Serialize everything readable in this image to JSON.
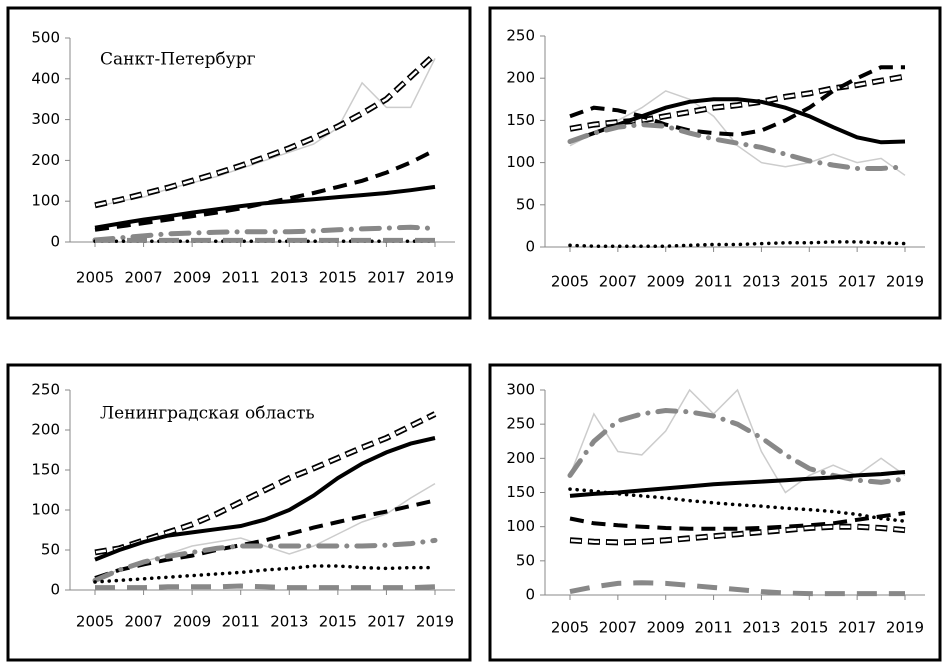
{
  "chart_data": [
    {
      "type": "line",
      "title": "Санкт-Петербург",
      "x": [
        2005,
        2006,
        2007,
        2008,
        2009,
        2010,
        2011,
        2012,
        2013,
        2014,
        2015,
        2016,
        2017,
        2018,
        2019
      ],
      "xlim": [
        2005,
        2019
      ],
      "xticks": [
        2005,
        2007,
        2009,
        2011,
        2013,
        2015,
        2017,
        2019
      ],
      "ylim": [
        0,
        500
      ],
      "yticks": [
        0,
        100,
        200,
        300,
        400,
        500
      ],
      "series": [
        {
          "color": "#cccccc",
          "style": "thin",
          "values": [
            85,
            100,
            110,
            130,
            145,
            160,
            180,
            200,
            220,
            240,
            280,
            390,
            330,
            330,
            450
          ]
        },
        {
          "color": "#000000",
          "style": "hollow",
          "values": [
            90,
            103,
            118,
            133,
            150,
            168,
            187,
            208,
            230,
            255,
            283,
            315,
            350,
            405,
            460
          ]
        },
        {
          "color": "#000000",
          "style": "dash",
          "values": [
            30,
            38,
            46,
            55,
            63,
            72,
            82,
            95,
            107,
            120,
            135,
            150,
            170,
            195,
            225
          ]
        },
        {
          "color": "#000000",
          "style": "solid",
          "values": [
            35,
            45,
            55,
            63,
            72,
            80,
            88,
            95,
            100,
            105,
            110,
            115,
            120,
            127,
            135
          ]
        },
        {
          "color": "#888888",
          "style": "dashdot",
          "values": [
            5,
            10,
            15,
            20,
            22,
            24,
            25,
            25,
            25,
            27,
            30,
            32,
            34,
            36,
            33
          ]
        },
        {
          "color": "#000000",
          "style": "dot",
          "values": [
            2,
            2,
            2,
            2,
            2,
            2,
            2,
            2,
            2,
            2,
            2,
            2,
            2,
            2,
            2
          ]
        },
        {
          "color": "#888888",
          "style": "longdash",
          "values": [
            4,
            4,
            4,
            4,
            4,
            4,
            4,
            4,
            4,
            4,
            4,
            4,
            4,
            4,
            4
          ]
        }
      ]
    },
    {
      "type": "line",
      "x": [
        2005,
        2006,
        2007,
        2008,
        2009,
        2010,
        2011,
        2012,
        2013,
        2014,
        2015,
        2016,
        2017,
        2018,
        2019
      ],
      "xlim": [
        2005,
        2019
      ],
      "xticks": [
        2005,
        2007,
        2009,
        2011,
        2013,
        2015,
        2017,
        2019
      ],
      "ylim": [
        0,
        250
      ],
      "yticks": [
        0,
        50,
        100,
        150,
        200,
        250
      ],
      "series": [
        {
          "color": "#cccccc",
          "style": "thin",
          "values": [
            120,
            135,
            150,
            165,
            185,
            175,
            155,
            120,
            100,
            95,
            100,
            110,
            100,
            105,
            85
          ]
        },
        {
          "color": "#000000",
          "style": "hollow",
          "values": [
            140,
            145,
            148,
            150,
            155,
            160,
            165,
            168,
            172,
            178,
            182,
            188,
            192,
            197,
            202
          ]
        },
        {
          "color": "#000000",
          "style": "dash",
          "values": [
            155,
            165,
            162,
            155,
            145,
            138,
            135,
            133,
            138,
            150,
            165,
            185,
            200,
            213,
            213
          ]
        },
        {
          "color": "#000000",
          "style": "solid",
          "values": [
            125,
            135,
            145,
            155,
            165,
            172,
            175,
            175,
            172,
            165,
            155,
            142,
            130,
            124,
            125
          ]
        },
        {
          "color": "#888888",
          "style": "dashdot",
          "values": [
            125,
            135,
            142,
            145,
            143,
            135,
            128,
            123,
            118,
            110,
            102,
            97,
            93,
            93,
            95
          ]
        },
        {
          "color": "#000000",
          "style": "dot",
          "values": [
            2,
            1,
            1,
            1,
            1,
            2,
            3,
            3,
            4,
            5,
            5,
            6,
            6,
            5,
            4
          ]
        }
      ]
    },
    {
      "type": "line",
      "title": "Ленинградская область",
      "x": [
        2005,
        2006,
        2007,
        2008,
        2009,
        2010,
        2011,
        2012,
        2013,
        2014,
        2015,
        2016,
        2017,
        2018,
        2019
      ],
      "xlim": [
        2005,
        2019
      ],
      "xticks": [
        2005,
        2007,
        2009,
        2011,
        2013,
        2015,
        2017,
        2019
      ],
      "ylim": [
        0,
        250
      ],
      "yticks": [
        0,
        50,
        100,
        150,
        200,
        250
      ],
      "series": [
        {
          "color": "#cccccc",
          "style": "thin",
          "values": [
            15,
            25,
            35,
            45,
            55,
            60,
            65,
            55,
            45,
            55,
            70,
            85,
            95,
            115,
            133
          ]
        },
        {
          "color": "#000000",
          "style": "hollow",
          "values": [
            47,
            52,
            62,
            72,
            82,
            95,
            110,
            125,
            140,
            152,
            165,
            178,
            190,
            205,
            220
          ]
        },
        {
          "color": "#000000",
          "style": "solid",
          "values": [
            38,
            50,
            60,
            68,
            72,
            76,
            80,
            88,
            100,
            118,
            140,
            158,
            172,
            183,
            190
          ]
        },
        {
          "color": "#000000",
          "style": "dash",
          "values": [
            15,
            25,
            32,
            38,
            43,
            50,
            56,
            62,
            70,
            78,
            85,
            92,
            98,
            105,
            112
          ]
        },
        {
          "color": "#888888",
          "style": "dashdot",
          "values": [
            12,
            25,
            35,
            42,
            47,
            52,
            55,
            55,
            55,
            55,
            55,
            55,
            56,
            58,
            62
          ]
        },
        {
          "color": "#000000",
          "style": "dot",
          "values": [
            10,
            12,
            14,
            16,
            18,
            20,
            22,
            25,
            27,
            30,
            30,
            28,
            27,
            28,
            28
          ]
        },
        {
          "color": "#888888",
          "style": "longdash",
          "values": [
            3,
            3,
            3,
            4,
            4,
            4,
            5,
            4,
            3,
            3,
            3,
            3,
            3,
            3,
            4
          ]
        }
      ]
    },
    {
      "type": "line",
      "x": [
        2005,
        2006,
        2007,
        2008,
        2009,
        2010,
        2011,
        2012,
        2013,
        2014,
        2015,
        2016,
        2017,
        2018,
        2019
      ],
      "xlim": [
        2005,
        2019
      ],
      "xticks": [
        2005,
        2007,
        2009,
        2011,
        2013,
        2015,
        2017,
        2019
      ],
      "ylim": [
        0,
        300
      ],
      "yticks": [
        0,
        50,
        100,
        150,
        200,
        250,
        300
      ],
      "series": [
        {
          "color": "#cccccc",
          "style": "thin",
          "values": [
            175,
            265,
            210,
            205,
            240,
            300,
            265,
            300,
            210,
            150,
            175,
            190,
            175,
            200,
            175
          ]
        },
        {
          "color": "#888888",
          "style": "dashdot",
          "values": [
            175,
            225,
            255,
            265,
            270,
            268,
            262,
            250,
            230,
            205,
            185,
            175,
            168,
            165,
            170
          ]
        },
        {
          "color": "#000000",
          "style": "solid",
          "values": [
            145,
            148,
            150,
            153,
            156,
            159,
            162,
            164,
            166,
            168,
            170,
            172,
            175,
            177,
            180
          ]
        },
        {
          "color": "#000000",
          "style": "dot",
          "values": [
            155,
            152,
            148,
            145,
            142,
            138,
            135,
            132,
            130,
            127,
            125,
            122,
            118,
            112,
            108
          ]
        },
        {
          "color": "#000000",
          "style": "dash",
          "values": [
            112,
            105,
            102,
            100,
            98,
            97,
            97,
            97,
            98,
            100,
            102,
            105,
            110,
            115,
            120
          ]
        },
        {
          "color": "#000000",
          "style": "hollow",
          "values": [
            80,
            78,
            77,
            78,
            80,
            83,
            86,
            89,
            92,
            95,
            98,
            100,
            100,
            98,
            95
          ]
        },
        {
          "color": "#888888",
          "style": "longdash",
          "values": [
            5,
            12,
            17,
            18,
            17,
            14,
            11,
            8,
            5,
            3,
            2,
            2,
            2,
            2,
            2
          ]
        }
      ]
    }
  ]
}
